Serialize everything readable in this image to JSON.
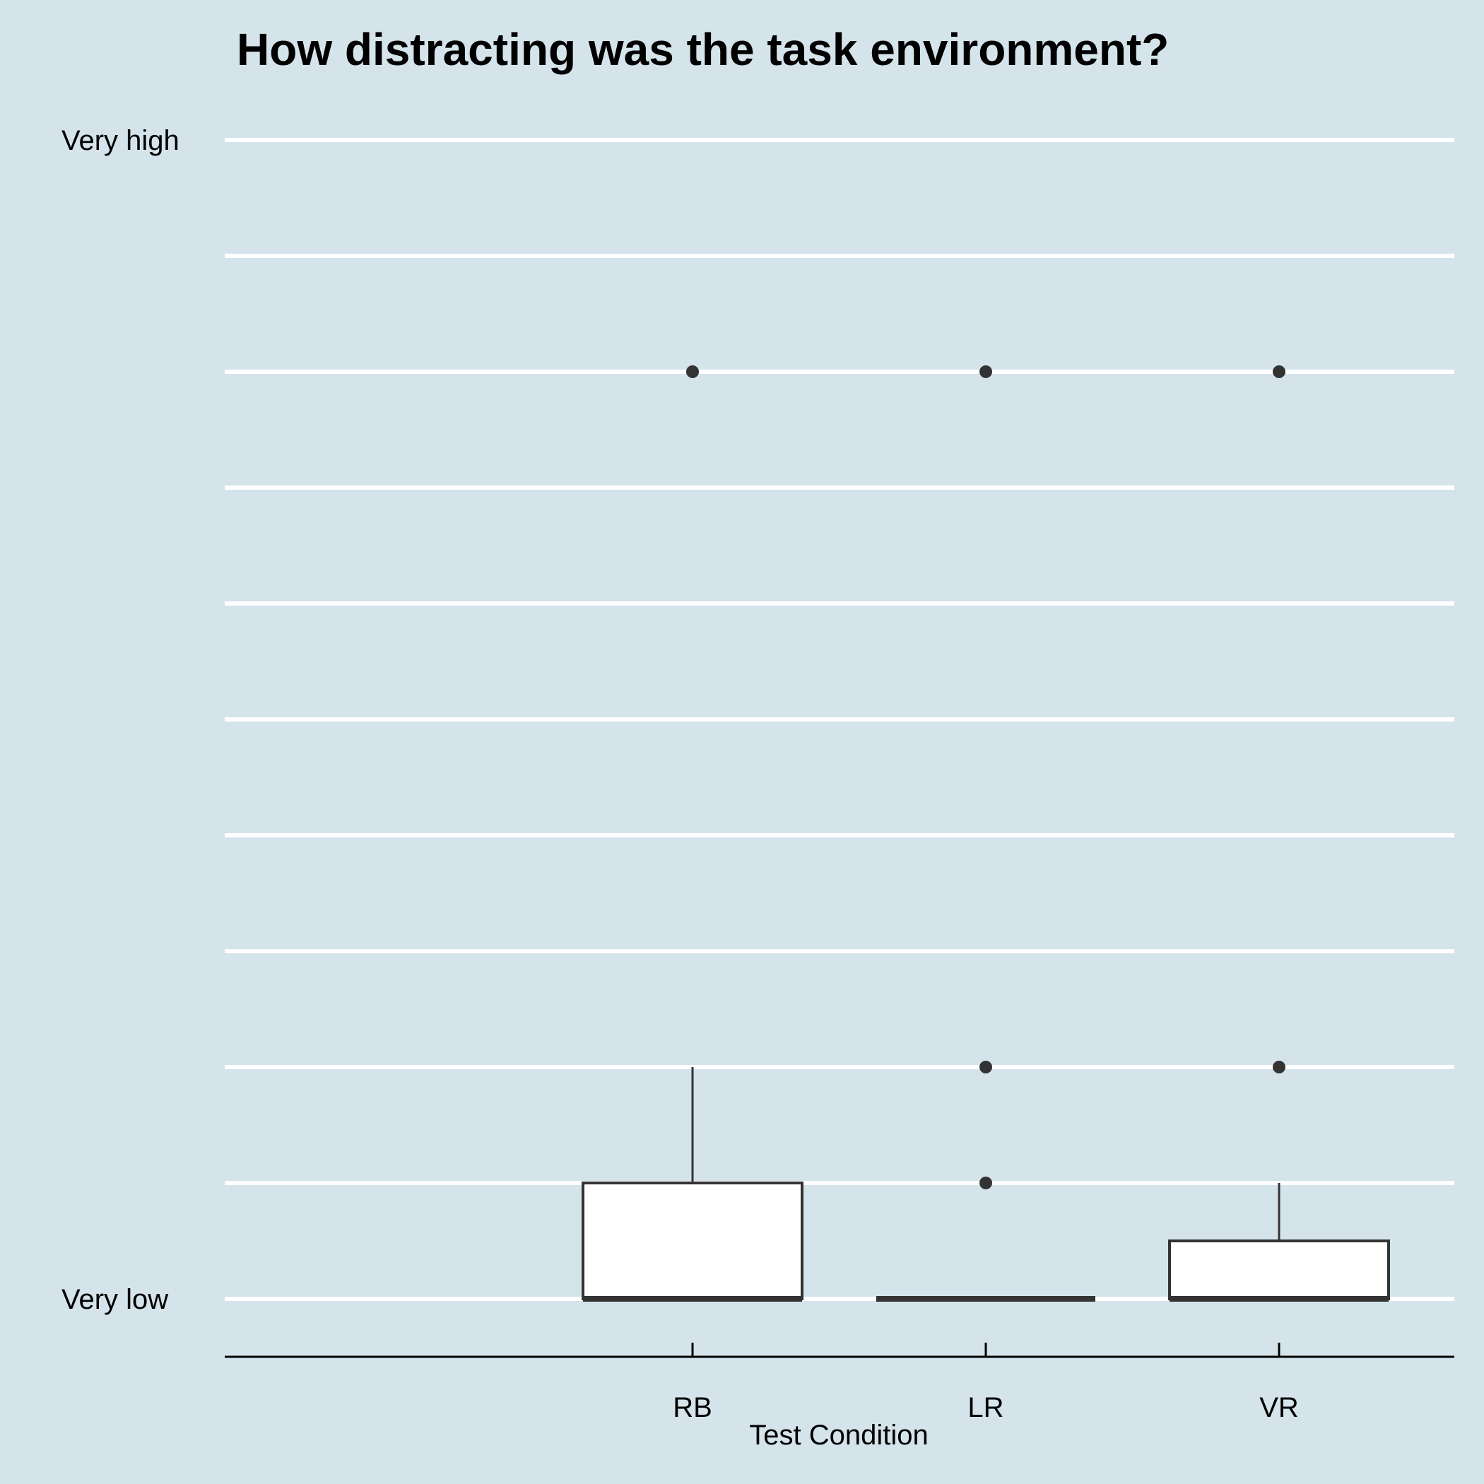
{
  "chart_data": {
    "type": "box",
    "title": "How distracting was the task environment?",
    "xlabel": "Test Condition",
    "ylabel": "",
    "ylim": [
      1,
      11
    ],
    "y_tick_labels": [
      {
        "value": 11,
        "label": "Very high"
      },
      {
        "value": 1,
        "label": "Very low"
      }
    ],
    "gridlines": [
      1,
      2,
      3,
      4,
      5,
      6,
      7,
      8,
      9,
      10,
      11
    ],
    "categories": [
      "RB",
      "LR",
      "VR"
    ],
    "boxes": [
      {
        "category": "RB",
        "whisker_low": 1,
        "q1": 1,
        "median": 1,
        "q3": 2,
        "whisker_high": 3,
        "outliers": [
          9
        ]
      },
      {
        "category": "LR",
        "whisker_low": 1,
        "q1": 1,
        "median": 1,
        "q3": 1,
        "whisker_high": 1,
        "outliers": [
          2,
          3,
          9
        ]
      },
      {
        "category": "VR",
        "whisker_low": 1,
        "q1": 1,
        "median": 1,
        "q3": 1.5,
        "whisker_high": 2,
        "outliers": [
          3,
          9
        ]
      }
    ],
    "colors": {
      "background": "#d5e4eb",
      "grid": "#ffffff",
      "box_fill": "#ffffff",
      "box_stroke": "#333333",
      "axis": "#000000"
    }
  }
}
